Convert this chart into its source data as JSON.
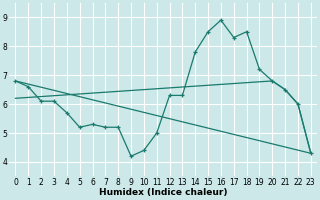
{
  "xlabel": "Humidex (Indice chaleur)",
  "background_color": "#cce8e8",
  "grid_color": "#ffffff",
  "line_color": "#1a7a6e",
  "xlim": [
    -0.5,
    23.5
  ],
  "ylim": [
    3.5,
    9.5
  ],
  "yticks": [
    4,
    5,
    6,
    7,
    8,
    9
  ],
  "line1_x": [
    0,
    1,
    2,
    3,
    4,
    5,
    6,
    7,
    8,
    9,
    10,
    11,
    12,
    13,
    14,
    15,
    16,
    17,
    18,
    19,
    20,
    21,
    22,
    23
  ],
  "line1_y": [
    6.8,
    6.6,
    6.1,
    6.1,
    5.7,
    5.2,
    5.3,
    5.2,
    5.2,
    4.2,
    4.4,
    5.0,
    6.3,
    6.3,
    7.8,
    8.5,
    8.9,
    8.3,
    8.5,
    7.2,
    6.8,
    6.5,
    6.0,
    4.3
  ],
  "line2_x": [
    0,
    20,
    21,
    22,
    23
  ],
  "line2_y": [
    6.2,
    6.8,
    6.5,
    6.0,
    4.3
  ],
  "line3_x": [
    0,
    23
  ],
  "line3_y": [
    6.8,
    4.3
  ],
  "xlabel_fontsize": 6.5,
  "tick_labelsize": 5.5
}
